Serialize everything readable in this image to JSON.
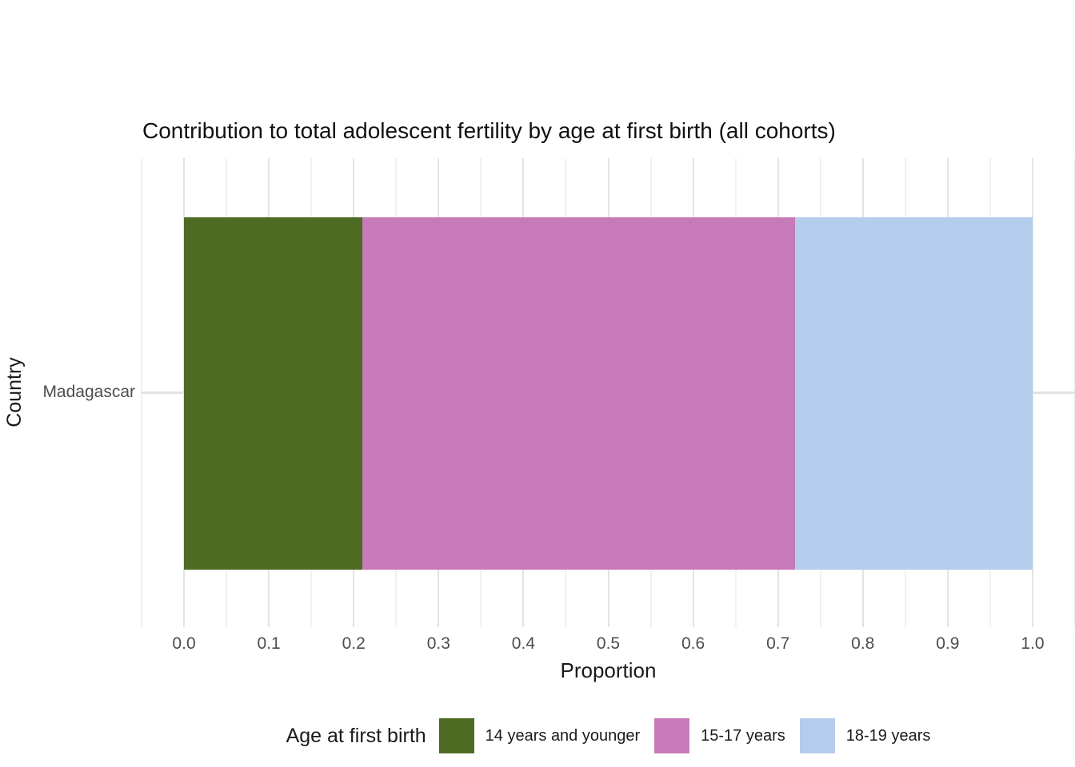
{
  "chart_data": {
    "type": "bar",
    "orientation": "horizontal",
    "stacked": true,
    "title": "Contribution to total adolescent fertility by age at first birth (all cohorts)",
    "xlabel": "Proportion",
    "ylabel": "Country",
    "categories": [
      "Madagascar"
    ],
    "series": [
      {
        "name": "14 years and younger",
        "color": "#4d6b23",
        "values": [
          0.21
        ]
      },
      {
        "name": "15-17 years",
        "color": "#c77ab8",
        "values": [
          0.51
        ]
      },
      {
        "name": "18-19 years",
        "color": "#b5cdec",
        "values": [
          0.28
        ]
      }
    ],
    "xlim": [
      -0.05,
      1.05
    ],
    "x_ticks": [
      0.0,
      0.1,
      0.2,
      0.3,
      0.4,
      0.5,
      0.6,
      0.7,
      0.8,
      0.9,
      1.0
    ],
    "x_tick_labels": [
      "0.0",
      "0.1",
      "0.2",
      "0.3",
      "0.4",
      "0.5",
      "0.6",
      "0.7",
      "0.8",
      "0.9",
      "1.0"
    ],
    "x_minor_ticks": [
      -0.05,
      0.05,
      0.15,
      0.25,
      0.35,
      0.45,
      0.55,
      0.65,
      0.75,
      0.85,
      0.95,
      1.05
    ],
    "legend_title": "Age at first birth",
    "legend_position": "bottom",
    "grid": true,
    "colors": {
      "grid_major": "#e3e3e3",
      "grid_minor": "#f1f1f1",
      "tick_label": "#4d4d4d",
      "text": "#1a1a1a"
    }
  }
}
